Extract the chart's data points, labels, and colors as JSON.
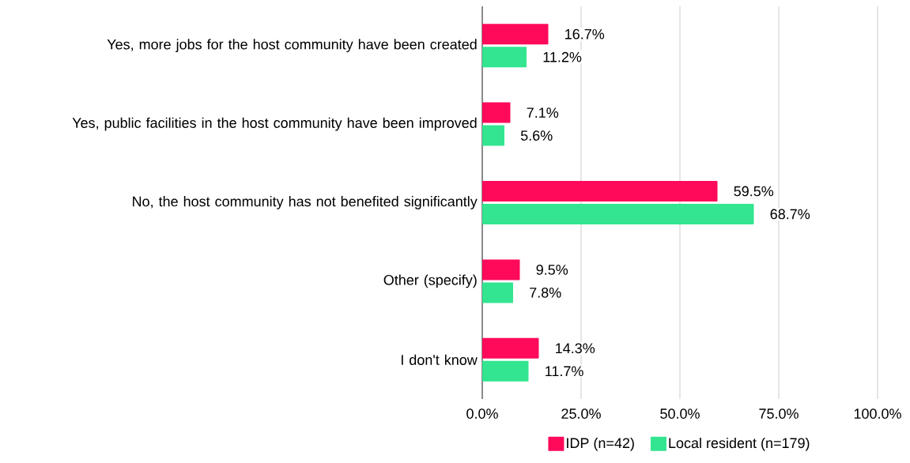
{
  "chart_data": {
    "type": "bar",
    "orientation": "horizontal",
    "categories": [
      "Yes, more jobs for the host community have been created",
      "Yes, public facilities in the host community have been improved",
      "No, the host community has not benefited significantly",
      "Other (specify)",
      "I don't know"
    ],
    "series": [
      {
        "name": "IDP (n=42)",
        "color": "#ff0a5a",
        "values": [
          16.7,
          7.1,
          59.5,
          9.5,
          14.3
        ],
        "value_labels": [
          "16.7%",
          "7.1%",
          "59.5%",
          "9.5%",
          "14.3%"
        ]
      },
      {
        "name": "Local resident (n=179)",
        "color": "#33e590",
        "values": [
          11.2,
          5.6,
          68.7,
          7.8,
          11.7
        ],
        "value_labels": [
          "11.2%",
          "5.6%",
          "68.7%",
          "7.8%",
          "11.7%"
        ]
      }
    ],
    "xlim": [
      0,
      100
    ],
    "xticks": [
      {
        "value": 0,
        "label": "0.0%"
      },
      {
        "value": 25,
        "label": "25.0%"
      },
      {
        "value": 50,
        "label": "50.0%"
      },
      {
        "value": 75,
        "label": "75.0%"
      },
      {
        "value": 100,
        "label": "100.0%"
      }
    ],
    "grid": "x",
    "legend": "bottom"
  }
}
